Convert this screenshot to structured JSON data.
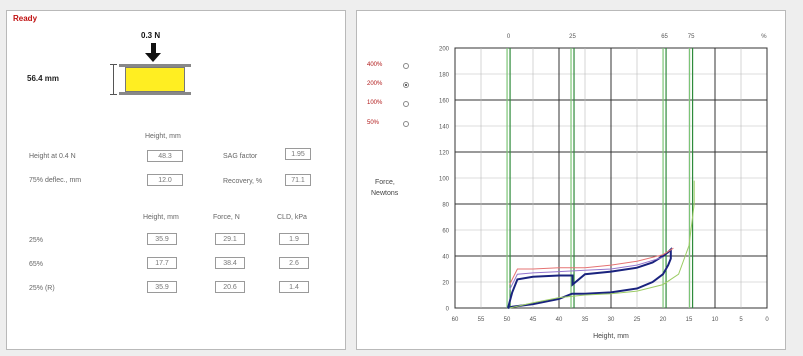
{
  "status": "Ready",
  "diagram": {
    "force_label": "0.3 N",
    "height_label": "56.4 mm"
  },
  "left": {
    "height_header": "Height, mm",
    "height_at_label": "Height at 0.4 N",
    "height_at_value": "48.3",
    "deflection_label": "75% deflec., mm",
    "deflection_value": "12.0",
    "sag_label": "SAG factor",
    "sag_value": "1.95",
    "recovery_label": "Recovery, %",
    "recovery_value": "71.1",
    "table": {
      "headers": [
        "Height, mm",
        "Force, N",
        "CLD, kPa"
      ],
      "rows": [
        {
          "label": "25%",
          "height": "35.9",
          "force": "29.1",
          "cld": "1.9"
        },
        {
          "label": "65%",
          "height": "17.7",
          "force": "38.4",
          "cld": "2.6"
        },
        {
          "label": "25% (R)",
          "height": "35.9",
          "force": "20.6",
          "cld": "1.4"
        }
      ]
    }
  },
  "chart": {
    "legend": [
      {
        "label": "400%",
        "checked": false
      },
      {
        "label": "200%",
        "checked": true
      },
      {
        "label": "100%",
        "checked": false
      },
      {
        "label": "50%",
        "checked": false
      }
    ],
    "ylabel_line1": "Force,",
    "ylabel_line2": "Newtons",
    "xlabel": "Height, mm"
  },
  "chart_data": {
    "type": "line",
    "xlabel": "Height, mm",
    "ylabel": "Force, Newtons",
    "xlim": [
      60,
      0
    ],
    "ylim": [
      0,
      200
    ],
    "x_ticks": [
      60,
      55,
      50,
      45,
      40,
      35,
      30,
      25,
      20,
      15,
      10,
      5,
      0
    ],
    "y_ticks": [
      0,
      20,
      40,
      60,
      80,
      100,
      120,
      140,
      160,
      180,
      200
    ],
    "top_markers": [
      {
        "label": "0",
        "x": 49.7
      },
      {
        "label": "25",
        "x": 37.4
      },
      {
        "label": "65",
        "x": 19.7
      },
      {
        "label": "75",
        "x": 14.6
      },
      {
        "label": "%",
        "x": 0.6
      }
    ],
    "vertical_lines": [
      49.7,
      37.4,
      19.7,
      14.6
    ],
    "grid": true,
    "series": [
      {
        "color": "#1a237e",
        "x": [
          49.8,
          49.0,
          48.0,
          45.0,
          40.0,
          37.5,
          37.4,
          37.4,
          35.0,
          30.0,
          25.0,
          22.0,
          20.0,
          19.0,
          18.5,
          18.5,
          19.0,
          20.0,
          22.0,
          25.0,
          30.0,
          35.0,
          37.4,
          37.5,
          40.0,
          45.0,
          49.0,
          49.8
        ],
        "y": [
          0,
          12,
          22,
          24,
          25,
          25,
          25,
          18,
          26,
          28,
          31,
          35,
          40,
          43,
          45,
          38,
          33,
          26,
          20,
          15,
          12,
          11,
          11,
          11,
          7,
          3,
          1,
          0
        ]
      },
      {
        "color": "#e57373",
        "x": [
          49.5,
          48.0,
          45.0,
          40.0,
          35.0,
          30.0,
          25.0,
          20.0,
          18.0
        ],
        "y": [
          18,
          30,
          30,
          31,
          31,
          33,
          36,
          41,
          46
        ]
      },
      {
        "color": "#9575cd",
        "x": [
          49.5,
          48.0,
          45.0,
          40.0,
          35.0,
          30.0,
          25.0,
          20.0
        ],
        "y": [
          14,
          26,
          27,
          28,
          29,
          30,
          33,
          39
        ]
      },
      {
        "color": "#9ccc65",
        "x": [
          49.5,
          45.0,
          40.0,
          35.0,
          30.0,
          25.0,
          20.0,
          17.0,
          15.0,
          14.0,
          14.0
        ],
        "y": [
          0,
          4,
          8,
          10,
          11,
          13,
          18,
          26,
          48,
          80,
          98
        ]
      }
    ]
  }
}
